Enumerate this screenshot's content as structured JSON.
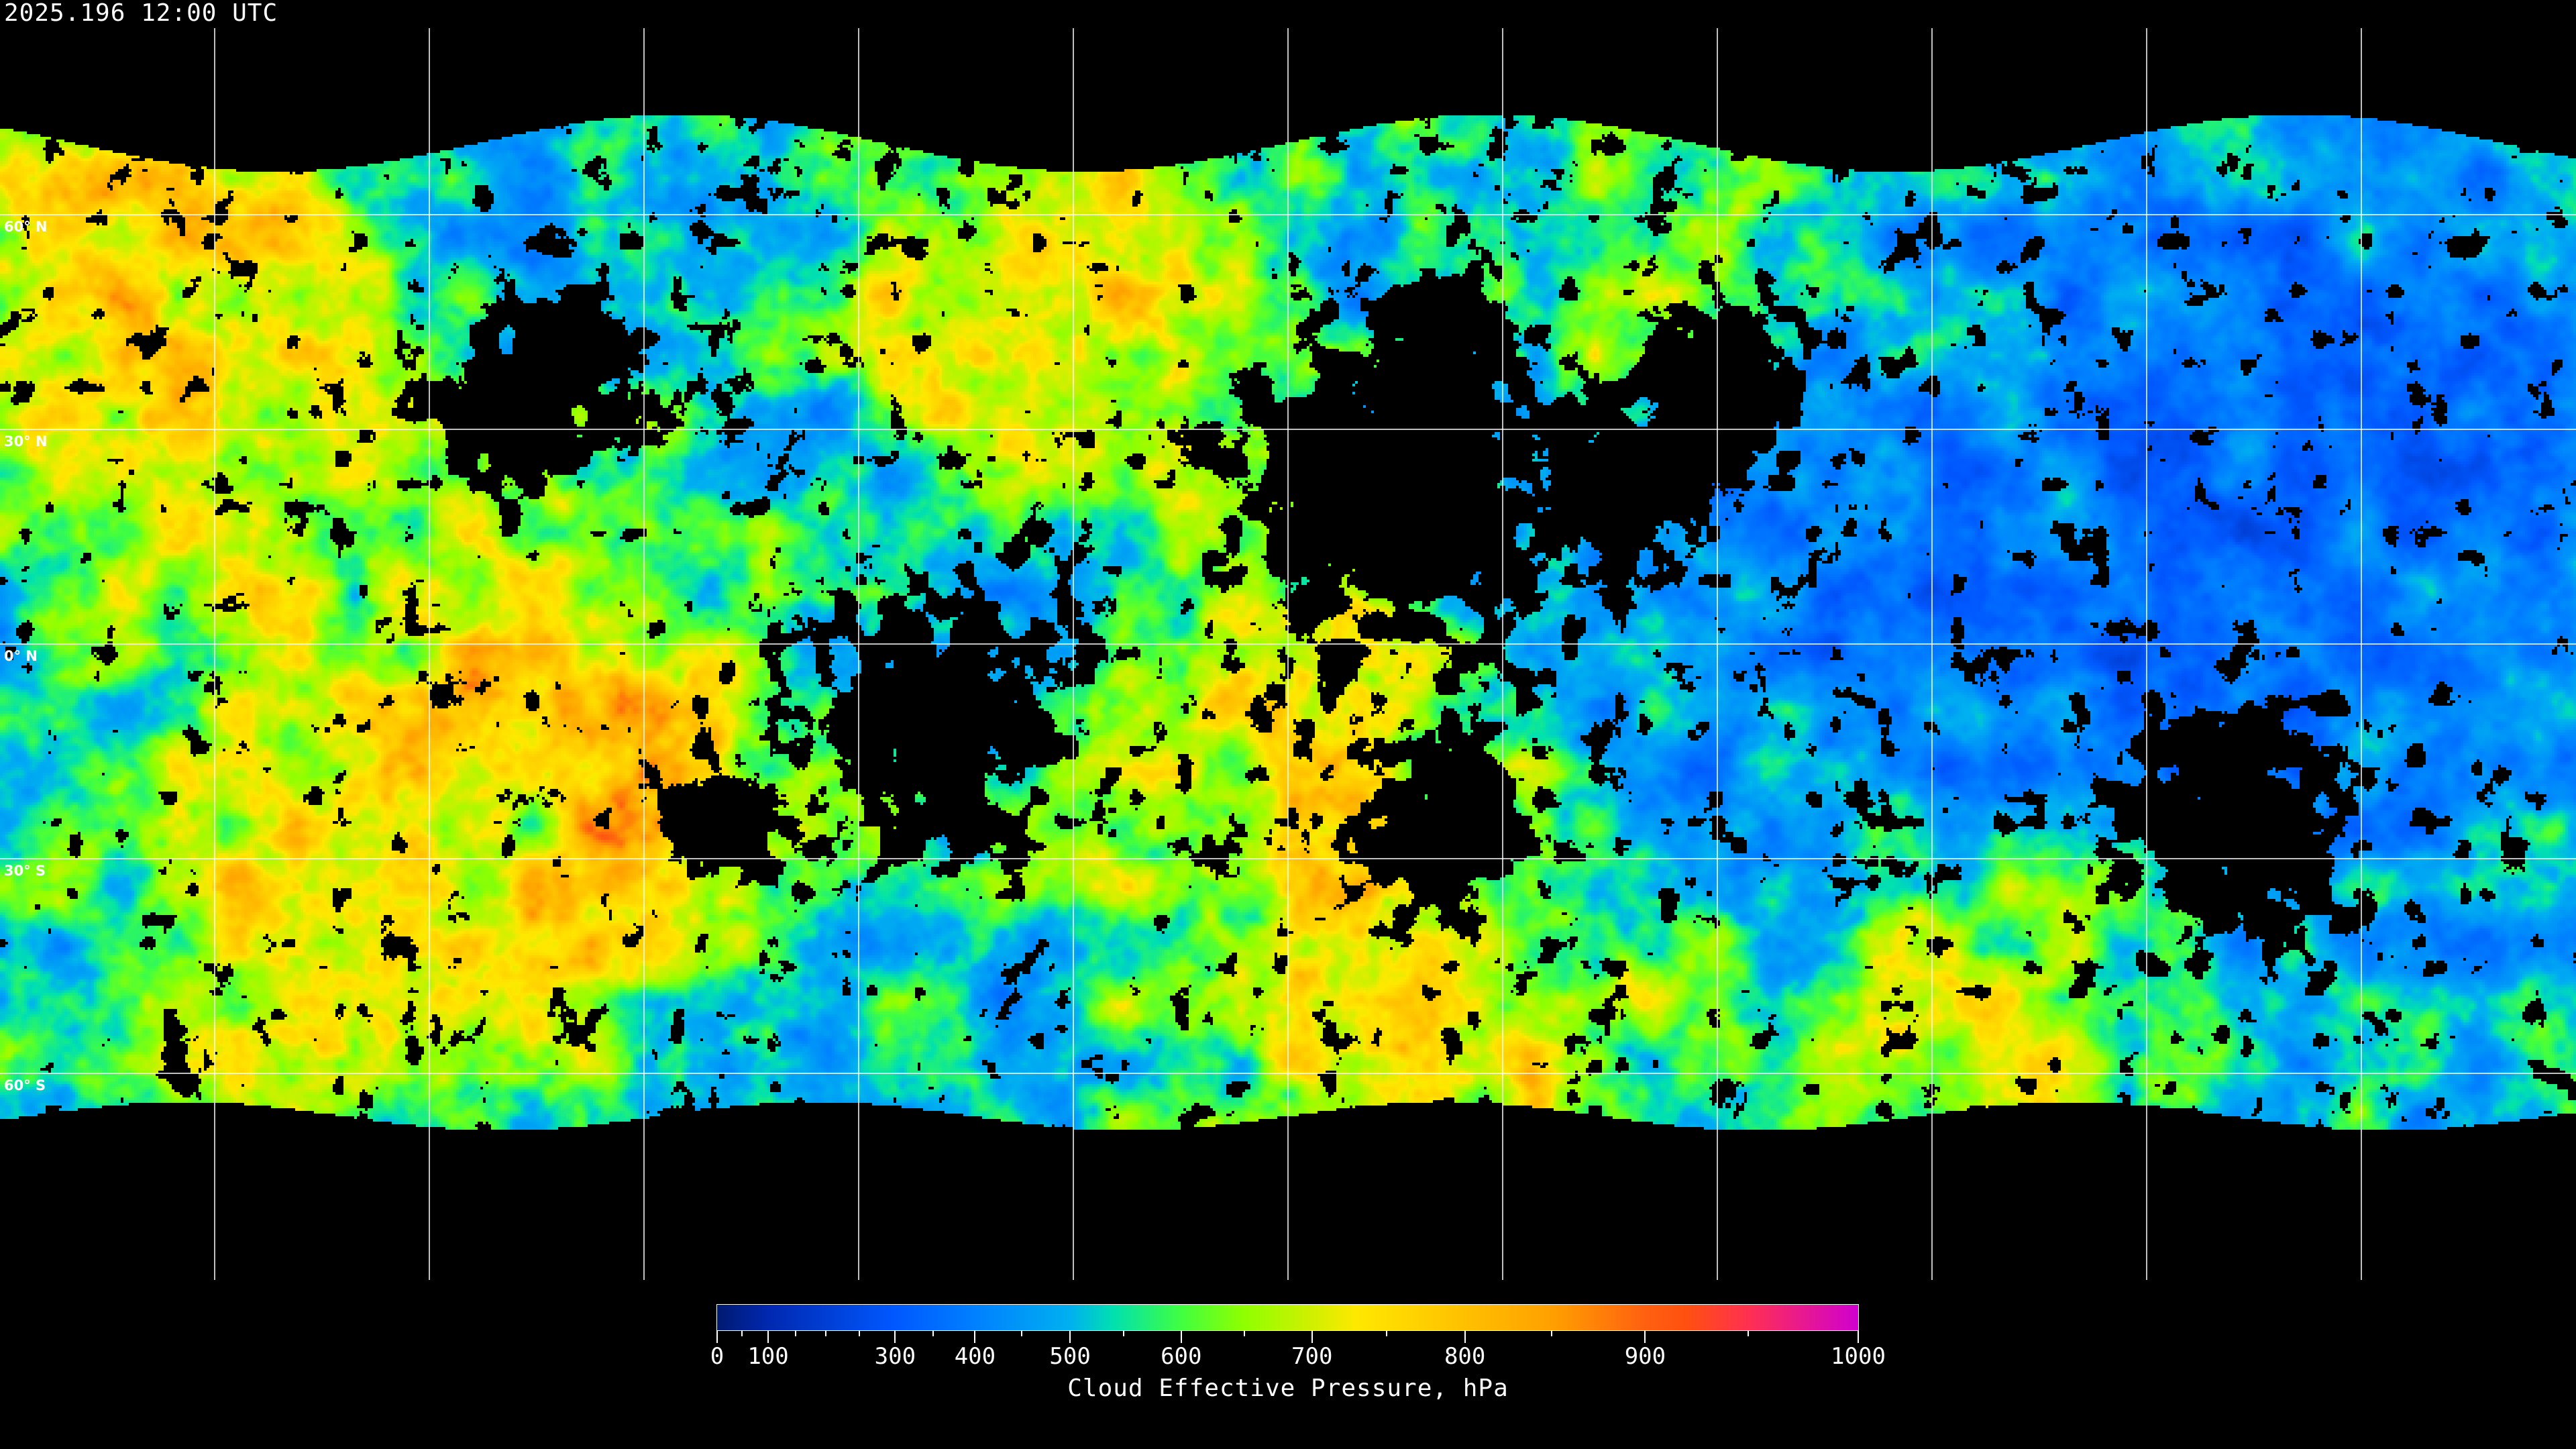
{
  "title": "2025.196 12:00 UTC",
  "map": {
    "projection": "equirectangular",
    "lon_range": [
      -180,
      180
    ],
    "lat_range": [
      -90,
      90
    ],
    "grid_spacing_deg": 30,
    "grid_color": "#ffffff",
    "frame_color": "#aaaaaa",
    "no_data_color": "#000000",
    "lat_labels": [
      {
        "lat": 60,
        "text": "60° N"
      },
      {
        "lat": 30,
        "text": "30° N"
      },
      {
        "lat": 0,
        "text": "0° N"
      },
      {
        "lat": -30,
        "text": "30° S"
      },
      {
        "lat": -60,
        "text": "60° S"
      }
    ]
  },
  "colorbar": {
    "title": "Cloud Effective Pressure, hPa",
    "range": [
      0,
      1000
    ],
    "major_ticks": [
      {
        "value": 0,
        "label": "0"
      },
      {
        "value": 100,
        "label": "100"
      },
      {
        "value": 300,
        "label": "300"
      },
      {
        "value": 400,
        "label": "400"
      },
      {
        "value": 500,
        "label": "500"
      },
      {
        "value": 600,
        "label": "600"
      },
      {
        "value": 700,
        "label": "700"
      },
      {
        "value": 800,
        "label": "800"
      },
      {
        "value": 900,
        "label": "900"
      },
      {
        "value": 1000,
        "label": "1000"
      }
    ],
    "minor_ticks": [
      50,
      150,
      200,
      250,
      350,
      450,
      550,
      650,
      750,
      850,
      950
    ],
    "colormap": [
      {
        "p": 0,
        "color": "#001a70"
      },
      {
        "p": 100,
        "color": "#0028b0"
      },
      {
        "p": 300,
        "color": "#0058ff"
      },
      {
        "p": 400,
        "color": "#0080ff"
      },
      {
        "p": 500,
        "color": "#00b0f0"
      },
      {
        "p": 540,
        "color": "#00e0b0"
      },
      {
        "p": 600,
        "color": "#40ff40"
      },
      {
        "p": 650,
        "color": "#90ff00"
      },
      {
        "p": 700,
        "color": "#d0f000"
      },
      {
        "p": 730,
        "color": "#ffe800"
      },
      {
        "p": 800,
        "color": "#ffc000"
      },
      {
        "p": 850,
        "color": "#ffa000"
      },
      {
        "p": 900,
        "color": "#ff6010"
      },
      {
        "p": 920,
        "color": "#ff5010"
      },
      {
        "p": 950,
        "color": "#ff3050"
      },
      {
        "p": 1000,
        "color": "#d000d0"
      }
    ]
  }
}
